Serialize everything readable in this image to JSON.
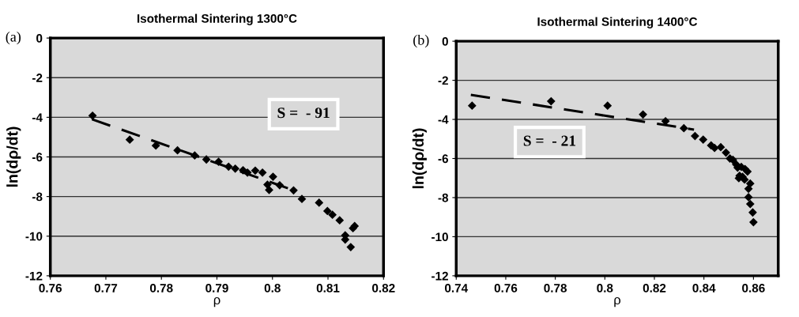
{
  "chart_data": [
    {
      "type": "scatter",
      "title": "Isothermal Sintering 1300°C",
      "xlabel": "ρ",
      "ylabel": "ln(dρ/dt)",
      "annotations": [
        "(a)",
        "S =  - 91"
      ],
      "xlim": [
        0.76,
        0.82
      ],
      "xticks": [
        0.76,
        0.77,
        0.78,
        0.79,
        0.8,
        0.81,
        0.82
      ],
      "ylim": [
        -12,
        0
      ],
      "yticks": [
        -12,
        -10,
        -8,
        -6,
        -4,
        -2,
        0
      ],
      "grid": "y",
      "legend": false,
      "series": [
        {
          "color": "#000000",
          "marker": "diamond",
          "x": [
            0.7676,
            0.7743,
            0.779,
            0.7829,
            0.786,
            0.7881,
            0.7903,
            0.7921,
            0.7933,
            0.7947,
            0.7955,
            0.7969,
            0.7982,
            0.8001,
            0.7991,
            0.7994,
            0.8013,
            0.8038,
            0.8053,
            0.8084,
            0.8099,
            0.8108,
            0.8121,
            0.8131,
            0.8131,
            0.8141,
            0.8145,
            0.8148
          ],
          "values": [
            -3.92,
            -5.13,
            -5.43,
            -5.67,
            -5.93,
            -6.13,
            -6.24,
            -6.49,
            -6.59,
            -6.67,
            -6.79,
            -6.69,
            -6.79,
            -7.0,
            -7.4,
            -7.67,
            -7.43,
            -7.69,
            -8.12,
            -8.31,
            -8.73,
            -8.92,
            -9.2,
            -9.96,
            -10.17,
            -10.55,
            -9.6,
            -9.49
          ]
        },
        {
          "type": "line",
          "color": "#000000",
          "line_style": "dashed",
          "x": [
            0.7675,
            0.804
          ],
          "values": [
            -4.1,
            -7.7
          ]
        }
      ]
    },
    {
      "type": "scatter",
      "title": "Isothermal Sintering 1400°C",
      "xlabel": "ρ",
      "ylabel": "ln(dρ/dt)",
      "annotations": [
        "(b)",
        "S =  - 21"
      ],
      "xlim": [
        0.74,
        0.87
      ],
      "xticks": [
        0.74,
        0.76,
        0.78,
        0.8,
        0.82,
        0.84,
        0.86
      ],
      "ylim": [
        -12,
        0
      ],
      "yticks": [
        -12,
        -10,
        -8,
        -6,
        -4,
        -2,
        0
      ],
      "grid": "y",
      "legend": false,
      "series": [
        {
          "color": "#000000",
          "marker": "diamond",
          "x": [
            0.7464,
            0.7783,
            0.8011,
            0.8154,
            0.8245,
            0.8319,
            0.8364,
            0.8397,
            0.8429,
            0.8443,
            0.8468,
            0.8489,
            0.8505,
            0.8517,
            0.853,
            0.8536,
            0.8551,
            0.8566,
            0.8576,
            0.8544,
            0.8541,
            0.8556,
            0.8564,
            0.8587,
            0.858,
            0.858,
            0.8587,
            0.8597,
            0.86
          ],
          "values": [
            -3.3,
            -3.07,
            -3.3,
            -3.75,
            -4.09,
            -4.45,
            -4.85,
            -5.03,
            -5.33,
            -5.46,
            -5.42,
            -5.7,
            -6.0,
            -6.07,
            -6.3,
            -6.47,
            -6.43,
            -6.54,
            -6.67,
            -6.88,
            -7.01,
            -6.94,
            -7.08,
            -7.28,
            -7.55,
            -7.98,
            -8.33,
            -8.76,
            -9.26
          ]
        },
        {
          "type": "line",
          "color": "#000000",
          "line_style": "dashed",
          "x": [
            0.7459,
            0.836
          ],
          "values": [
            -2.74,
            -4.52
          ]
        }
      ]
    }
  ]
}
